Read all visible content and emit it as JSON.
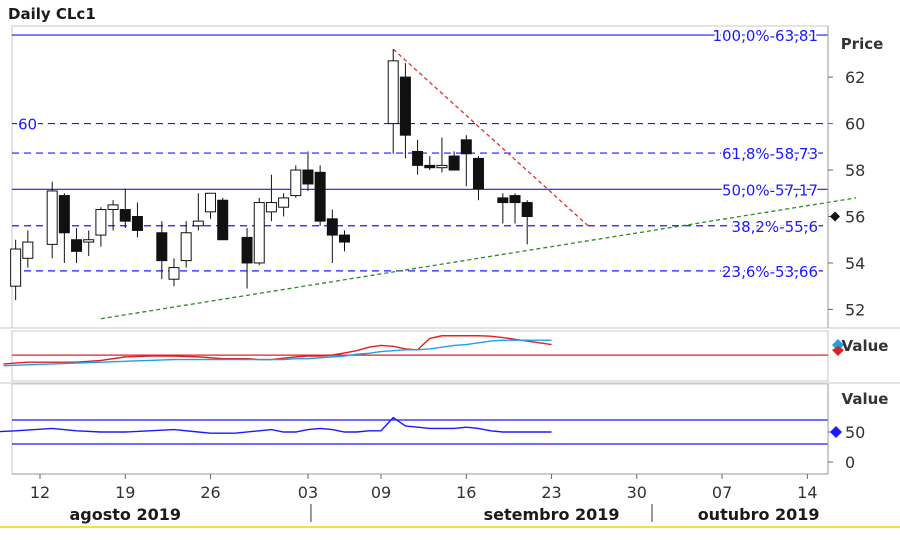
{
  "chart_data": {
    "type": "candlestick",
    "title": "Daily CLc1",
    "price_axis": {
      "label": "Price",
      "ylim": [
        51.2,
        64.2
      ],
      "ticks": [
        52,
        54,
        56,
        58,
        60,
        62
      ],
      "current_value_label": "56"
    },
    "x_axis": {
      "ticks": [
        {
          "label": "12",
          "day": 0
        },
        {
          "label": "19",
          "day": 7
        },
        {
          "label": "26",
          "day": 14
        },
        {
          "label": "03",
          "day": 22
        },
        {
          "label": "09",
          "day": 28
        },
        {
          "label": "16",
          "day": 35
        },
        {
          "label": "23",
          "day": 42
        },
        {
          "label": "30",
          "day": 49
        },
        {
          "label": "07",
          "day": 56
        },
        {
          "label": "14",
          "day": 63
        }
      ],
      "months": [
        {
          "label": "agosto 2019",
          "day": 7
        },
        {
          "label": "setembro 2019",
          "day": 42
        },
        {
          "label": "outubro 2019",
          "day": 59
        }
      ]
    },
    "candles": [
      {
        "day": -2,
        "o": 53.0,
        "h": 55.0,
        "l": 52.4,
        "c": 54.6
      },
      {
        "day": -1,
        "o": 54.2,
        "h": 55.4,
        "l": 53.8,
        "c": 54.9
      },
      {
        "day": 1,
        "o": 54.8,
        "h": 57.5,
        "l": 54.2,
        "c": 57.1
      },
      {
        "day": 2,
        "o": 56.9,
        "h": 57.0,
        "l": 54.0,
        "c": 55.3
      },
      {
        "day": 3,
        "o": 55.0,
        "h": 55.5,
        "l": 54.0,
        "c": 54.5
      },
      {
        "day": 4,
        "o": 54.9,
        "h": 55.4,
        "l": 54.3,
        "c": 55.0
      },
      {
        "day": 5,
        "o": 55.2,
        "h": 56.4,
        "l": 54.7,
        "c": 56.3
      },
      {
        "day": 6,
        "o": 56.3,
        "h": 56.7,
        "l": 55.4,
        "c": 56.5
      },
      {
        "day": 7,
        "o": 56.3,
        "h": 57.2,
        "l": 55.5,
        "c": 55.8
      },
      {
        "day": 8,
        "o": 56.0,
        "h": 56.6,
        "l": 55.1,
        "c": 55.4
      },
      {
        "day": 10,
        "o": 55.3,
        "h": 55.8,
        "l": 53.3,
        "c": 54.1
      },
      {
        "day": 11,
        "o": 53.3,
        "h": 54.2,
        "l": 53.0,
        "c": 53.8
      },
      {
        "day": 12,
        "o": 54.1,
        "h": 55.8,
        "l": 53.8,
        "c": 55.3
      },
      {
        "day": 13,
        "o": 55.6,
        "h": 57.0,
        "l": 55.4,
        "c": 55.8
      },
      {
        "day": 14,
        "o": 56.2,
        "h": 57.0,
        "l": 55.9,
        "c": 57.0
      },
      {
        "day": 15,
        "o": 56.7,
        "h": 56.8,
        "l": 55.0,
        "c": 55.0
      },
      {
        "day": 17,
        "o": 55.1,
        "h": 55.5,
        "l": 52.9,
        "c": 54.0
      },
      {
        "day": 18,
        "o": 54.0,
        "h": 56.8,
        "l": 53.9,
        "c": 56.6
      },
      {
        "day": 19,
        "o": 56.2,
        "h": 57.8,
        "l": 55.8,
        "c": 56.6
      },
      {
        "day": 20,
        "o": 56.4,
        "h": 57.0,
        "l": 56.0,
        "c": 56.8
      },
      {
        "day": 21,
        "o": 56.9,
        "h": 58.2,
        "l": 56.8,
        "c": 58.0
      },
      {
        "day": 22,
        "o": 58.0,
        "h": 58.8,
        "l": 57.1,
        "c": 57.4
      },
      {
        "day": 23,
        "o": 57.9,
        "h": 58.2,
        "l": 55.6,
        "c": 55.8
      },
      {
        "day": 24,
        "o": 55.9,
        "h": 56.3,
        "l": 54.0,
        "c": 55.2
      },
      {
        "day": 25,
        "o": 55.2,
        "h": 55.4,
        "l": 54.5,
        "c": 54.9
      },
      {
        "day": 29,
        "o": 60.0,
        "h": 63.2,
        "l": 58.7,
        "c": 62.7
      },
      {
        "day": 30,
        "o": 62.0,
        "h": 62.6,
        "l": 58.5,
        "c": 59.5
      },
      {
        "day": 31,
        "o": 58.8,
        "h": 59.3,
        "l": 57.8,
        "c": 58.2
      },
      {
        "day": 32,
        "o": 58.2,
        "h": 58.6,
        "l": 58.0,
        "c": 58.1
      },
      {
        "day": 33,
        "o": 58.1,
        "h": 59.4,
        "l": 57.9,
        "c": 58.2
      },
      {
        "day": 34,
        "o": 58.6,
        "h": 58.8,
        "l": 58.0,
        "c": 58.0
      },
      {
        "day": 35,
        "o": 59.3,
        "h": 59.5,
        "l": 57.3,
        "c": 58.7
      },
      {
        "day": 36,
        "o": 58.5,
        "h": 58.6,
        "l": 56.7,
        "c": 57.2
      },
      {
        "day": 38,
        "o": 56.8,
        "h": 57.0,
        "l": 55.7,
        "c": 56.6
      },
      {
        "day": 39,
        "o": 56.9,
        "h": 57.0,
        "l": 55.7,
        "c": 56.6
      },
      {
        "day": 40,
        "o": 56.6,
        "h": 56.7,
        "l": 54.8,
        "c": 56.0
      }
    ],
    "horizontal_lines": [
      {
        "value": 63.81,
        "label": "100,0%-63,81",
        "style": "solid"
      },
      {
        "value": 60,
        "label": "60",
        "style": "dashed"
      },
      {
        "value": 58.73,
        "label": "61,8%-58,73",
        "style": "dashed"
      },
      {
        "value": 57.17,
        "label": "50,0%-57,17",
        "style": "solid"
      },
      {
        "value": 55.6,
        "label": "38,2%-55,6",
        "style": "dashed"
      },
      {
        "value": 53.66,
        "label": "23,6%-53,66",
        "style": "dashed"
      }
    ],
    "trendlines": [
      {
        "name": "support",
        "color": "#2a8a2a",
        "from": {
          "day": 5,
          "value": 51.6
        },
        "to": {
          "day": 67,
          "value": 56.8
        }
      },
      {
        "name": "resistance",
        "color": "#e03030",
        "from": {
          "day": 29,
          "value": 63.2
        },
        "to": {
          "day": 45,
          "value": 55.6
        }
      }
    ],
    "indicator_panels": [
      {
        "label": "Value",
        "ylim": [
          0,
          1
        ],
        "series": [
          {
            "color": "#e02020",
            "values": [
              0.32,
              0.36,
              0.36,
              0.36,
              0.4,
              0.48,
              0.5,
              0.5,
              0.48,
              0.46,
              0.44,
              0.44,
              0.42,
              0.42,
              0.45,
              0.48,
              0.5,
              0.5,
              0.52,
              0.57,
              0.62,
              0.7,
              0.74,
              0.72,
              0.66,
              0.64,
              0.9,
              0.96,
              0.96,
              0.96,
              0.96,
              0.95,
              0.92,
              0.88,
              0.84,
              0.8,
              0.76
            ]
          },
          {
            "color": "#20a0e0",
            "values": [
              0.28,
              0.3,
              0.32,
              0.34,
              0.36,
              0.38,
              0.4,
              0.42,
              0.42,
              0.42,
              0.42,
              0.42,
              0.42,
              0.42,
              0.42,
              0.44,
              0.44,
              0.46,
              0.48,
              0.5,
              0.54,
              0.56,
              0.6,
              0.62,
              0.64,
              0.64,
              0.66,
              0.7,
              0.74,
              0.76,
              0.8,
              0.84,
              0.86,
              0.86,
              0.86,
              0.86,
              0.86
            ]
          }
        ],
        "reference_line": {
          "value": 0.52,
          "color": "#e02020"
        },
        "x_days": [
          -3,
          -1,
          1,
          3,
          5,
          7,
          9,
          11,
          13,
          14,
          15,
          17,
          18,
          19,
          20,
          21,
          22,
          23,
          24,
          25,
          26,
          27,
          28,
          29,
          30,
          31,
          32,
          33,
          34,
          35,
          36,
          37,
          38,
          39,
          40,
          41,
          42
        ]
      },
      {
        "label": "Value",
        "ylim": [
          0,
          100
        ],
        "ticks": [
          {
            "value": 0,
            "label": "0"
          },
          {
            "value": 50,
            "label": "50"
          }
        ],
        "reference_lines": [
          {
            "value": 70,
            "color": "#1a1aff"
          },
          {
            "value": 30,
            "color": "#1a1aff"
          }
        ],
        "series": [
          {
            "color": "#1a1aff",
            "values": [
              50,
              52,
              56,
              52,
              50,
              50,
              52,
              54,
              50,
              48,
              48,
              52,
              54,
              50,
              50,
              54,
              56,
              54,
              50,
              50,
              52,
              52,
              74,
              60,
              58,
              56,
              56,
              56,
              58,
              56,
              52,
              50,
              50,
              50,
              50,
              50
            ]
          }
        ],
        "x_days": [
          -4,
          -2,
          1,
          3,
          5,
          7,
          9,
          11,
          13,
          14,
          16,
          18,
          19,
          20,
          21,
          22,
          23,
          24,
          25,
          26,
          27,
          28,
          29,
          30,
          31,
          32,
          33,
          34,
          35,
          36,
          37,
          38,
          39,
          40,
          41,
          42
        ]
      }
    ]
  }
}
